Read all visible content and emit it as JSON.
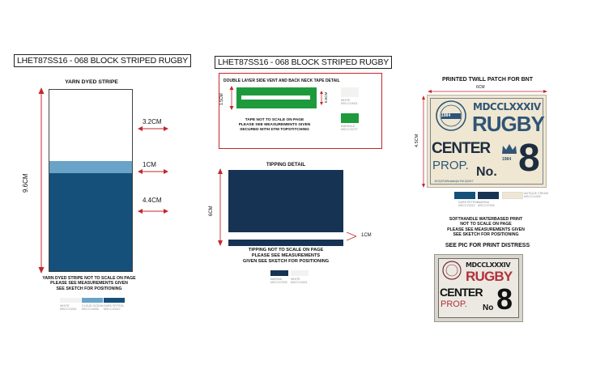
{
  "colors": {
    "navy": "#163353",
    "blue_stripe": "#6aa3c8",
    "dark_petrol": "#14507a",
    "green": "#1e9a3c",
    "red": "#c3272b",
    "patch_bg": "#efe7d2",
    "patch_ink": "#2f5577",
    "off_white": "#f2f2f0"
  },
  "left": {
    "title": "LHET87SS16 - 068 BLOCK STRIPED RUGBY",
    "stripe_heading": "YARN DYED STRIPE",
    "total_measure": "9.6CM",
    "measures": [
      "3.2CM",
      "1CM",
      "4.4CM"
    ],
    "note_lines": [
      "YARN DYED STRIPE NOT TO SCALE ON PAGE",
      "PLEASE SEE MEASUREMENTS GIVEN",
      "SEE SKETCH FOR POSITIONING"
    ],
    "swatches": [
      {
        "name": "WHITE",
        "code": "MSCC10001"
      },
      {
        "name": "CLOUD OCEAN",
        "code": "MSCC13006"
      },
      {
        "name": "DARK PETROL",
        "code": "MSCC23312"
      }
    ]
  },
  "middle": {
    "title": "LHET87SS16 - 068 BLOCK STRIPED RUGBY",
    "tape_heading": "DOUBLE LAYER SIDE VENT AND BACK NECK TAPE DETAIL",
    "tape_height": "1.5CM",
    "tape_stripe": "0.5CM",
    "tape_note": [
      "TAPE NOT TO SCALE ON PAGE",
      "PLEASE SEE MEASUREMENTS GIVEN",
      "SECURED WITH DTM TOPSTITCHING"
    ],
    "tape_swatches": [
      {
        "name": "WHITE",
        "code": "MSCC10001"
      },
      {
        "name": "EMERALD",
        "code": "MSCC23727"
      }
    ],
    "tipping_heading": "TIPPING DETAIL",
    "tipping_height": "6CM",
    "tipping_stripe": "1CM",
    "tipping_note": [
      "TIPPING NOT TO SCALE ON PAGE",
      "PLEASE SEE MEASUREMENTS",
      "GIVEN SEE SKETCH FOR POSITIONING"
    ],
    "tipping_swatches": [
      {
        "name": "MARINA",
        "code": "MSCC47505"
      },
      {
        "name": "WHITE",
        "code": "MSCC10001"
      }
    ]
  },
  "right": {
    "patch_heading": "PRINTED TWILL PATCH FOR BNT",
    "patch_width": "6CM",
    "patch_height": "4.5CM",
    "patch": {
      "year": "MDCCLXXXIV",
      "rugby": "RUGBY",
      "center": "CENTER",
      "prop": "PROP.",
      "no": "No.",
      "eight": "8",
      "seal_year": "1984",
      "crown_year": "1984",
      "footer": "1E2(5TARdativ)isTM.2)K07"
    },
    "patch_swatches": [
      {
        "name": "DARK PETROL",
        "code": "MSCC23312"
      },
      {
        "name": "MARINA",
        "code": "MSCC47505"
      },
      {
        "name": "ANTIQUE CREAM",
        "code": "MSCC14305"
      }
    ],
    "print_note": [
      "SOFTHANDLE WATERBASED PRINT",
      "NOT TO SCALE ON PAGE",
      "PLEASE SEE MEASUREMENTS GIVEN",
      "SEE SKETCH FOR POSITIONING"
    ],
    "distress_heading": "SEE PIC FOR PRINT DISTRESS",
    "distress": {
      "year": "MDCCLXXXIV",
      "rugby": "RUGBY",
      "center": "CENTER",
      "prop": "PROP.",
      "no": "No",
      "eight": "8"
    }
  }
}
